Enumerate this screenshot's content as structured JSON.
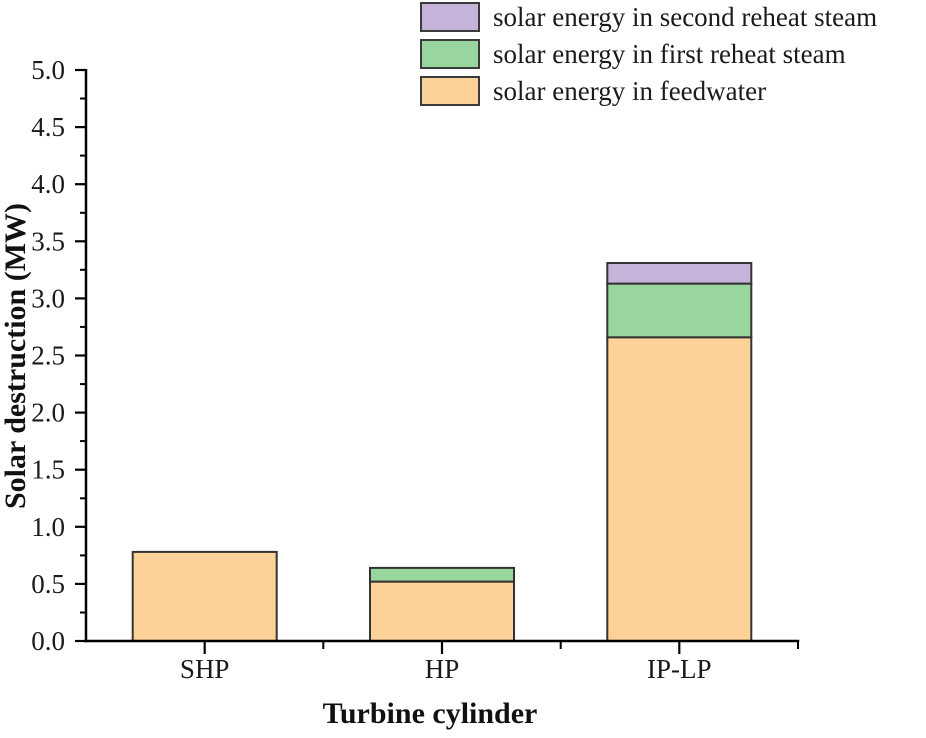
{
  "chart_data": {
    "type": "bar",
    "stacked": true,
    "title": "",
    "categories": [
      "SHP",
      "HP",
      "IP-LP"
    ],
    "series": [
      {
        "name": "solar energy in feedwater",
        "color": "#FCD298",
        "values": [
          0.78,
          0.52,
          2.66
        ]
      },
      {
        "name": "solar energy in first reheat steam",
        "color": "#99D69D",
        "values": [
          0,
          0.12,
          0.47
        ]
      },
      {
        "name": "solar energy in second reheat steam",
        "color": "#C5B3DA",
        "values": [
          0,
          0,
          0.18
        ]
      }
    ],
    "stack_totals": [
      0.78,
      0.64,
      3.31
    ],
    "xlabel": "Turbine cylinder",
    "ylabel": "Solar destruction (MW)",
    "ylim": [
      0,
      5
    ],
    "y_major_ticks": [
      0,
      0.5,
      1,
      1.5,
      2,
      2.5,
      3,
      3.5,
      4,
      4.5,
      5
    ],
    "y_tick_labels": [
      "0.0",
      "0.5",
      "1.0",
      "1.5",
      "2.0",
      "2.5",
      "3.0",
      "3.5",
      "4.0",
      "4.5",
      "5.0"
    ],
    "y_minor_step": 0.25,
    "grid": false,
    "legend_position": "top-right",
    "legend_display_order": [
      2,
      1,
      0
    ],
    "axis_color": "#000000",
    "bar_border_color": "#333333",
    "background": "#ffffff"
  }
}
